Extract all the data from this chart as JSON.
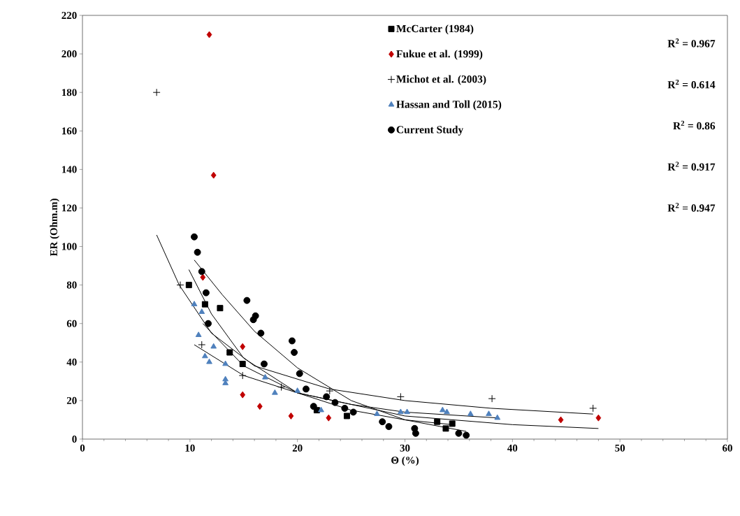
{
  "chart_data": {
    "type": "scatter",
    "xlabel": "Θ (%)",
    "ylabel": "ER (Ohm.m)",
    "xlim": [
      0,
      60
    ],
    "ylim": [
      0,
      220
    ],
    "xticks": [
      0,
      10,
      20,
      30,
      40,
      50,
      60
    ],
    "yticks": [
      0,
      20,
      40,
      60,
      80,
      100,
      120,
      140,
      160,
      180,
      200,
      220
    ],
    "grid": false,
    "legend": "top right",
    "annotations": [
      "R$^{2}$ = 0.967",
      "R$^{2}$ = 0.614",
      "R$^{2}$ = 0.86",
      "R$^{2}$ = 0.917",
      "R$^{2}$ = 0.947"
    ],
    "series": [
      {
        "name": "McCarter (1984)",
        "color": "#000000",
        "marker": "square",
        "x": [
          9.9,
          11.4,
          12.8,
          13.7,
          14.9,
          21.8,
          24.6,
          33,
          33.8,
          34.4
        ],
        "values": [
          80,
          70,
          68,
          45,
          39,
          15,
          12,
          9,
          5.5,
          8
        ]
      },
      {
        "name": "Fukue et al. (1999)",
        "color": "#c00000",
        "marker": "diamond",
        "x": [
          11.8,
          12.2,
          11.2,
          14.9,
          14.9,
          16.5,
          19.4,
          22.9,
          44.5,
          48
        ],
        "values": [
          210,
          137,
          84,
          48,
          23,
          17,
          12,
          11,
          10,
          11
        ]
      },
      {
        "name": "Michot et al. (2003)",
        "color": "#000000",
        "marker": "cross",
        "x": [
          6.9,
          9.1,
          11.1,
          14.9,
          18.5,
          23,
          29.6,
          38.1,
          47.5
        ],
        "values": [
          180,
          80,
          49,
          33,
          27,
          25,
          22,
          21,
          16
        ]
      },
      {
        "name": "Hassan and Toll (2015)",
        "color": "#4f81bd",
        "marker": "triangle",
        "x": [
          10.4,
          11.1,
          10.8,
          12.2,
          11.4,
          11.8,
          13.3,
          13.3,
          13.3,
          17,
          17.9,
          20,
          22.2,
          27.4,
          29.6,
          30.2,
          33.5,
          33.9,
          36.1,
          37.8,
          38.6
        ],
        "values": [
          70,
          66,
          54,
          48,
          43,
          40,
          39,
          31,
          29,
          32,
          24,
          25,
          15,
          13,
          14,
          14,
          15,
          14,
          13,
          13,
          11
        ]
      },
      {
        "name": "Current Study",
        "color": "#000000",
        "marker": "circle",
        "x": [
          10.4,
          10.7,
          11.1,
          11.5,
          11.7,
          15.3,
          16.1,
          15.9,
          16.6,
          19.5,
          19.7,
          20.2,
          20.8,
          16.9,
          21.5,
          22.7,
          23.5,
          24.4,
          25.2,
          27.9,
          28.5,
          30.9,
          31,
          35,
          35.7
        ],
        "values": [
          105,
          97,
          87,
          76,
          60,
          72,
          64,
          62,
          55,
          51,
          45,
          34,
          26,
          39,
          17,
          22,
          19,
          16,
          14,
          9,
          6.5,
          5.5,
          3,
          3,
          2
        ]
      },
      {
        "type": "line",
        "color": "#000000",
        "marker": "none",
        "x": [
          9.9,
          12,
          15,
          20,
          25,
          30,
          34.4
        ],
        "values": [
          88,
          65,
          42,
          24,
          15,
          10,
          7.5
        ]
      },
      {
        "type": "line",
        "color": "#000000",
        "marker": "none",
        "x": [
          11.2,
          15,
          20,
          30,
          40,
          48
        ],
        "values": [
          60,
          38,
          24,
          12,
          7.5,
          5.5
        ]
      },
      {
        "type": "line",
        "color": "#000000",
        "marker": "none",
        "x": [
          6.9,
          9,
          12,
          16,
          23,
          30,
          38,
          47.5
        ],
        "values": [
          106,
          80,
          55,
          38,
          26,
          20,
          16,
          13
        ]
      },
      {
        "type": "line",
        "color": "#000000",
        "marker": "none",
        "x": [
          10.4,
          15,
          20,
          25,
          30,
          38.6
        ],
        "values": [
          49,
          33,
          24,
          18,
          14,
          11
        ]
      },
      {
        "type": "line",
        "color": "#000000",
        "marker": "none",
        "x": [
          10.4,
          13,
          16,
          20,
          25,
          30,
          35.7
        ],
        "values": [
          93,
          75,
          56,
          37,
          20,
          10,
          4
        ]
      }
    ]
  }
}
